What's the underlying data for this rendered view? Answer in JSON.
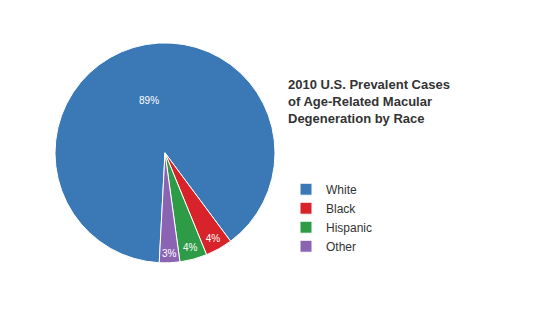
{
  "chart_data": {
    "type": "pie",
    "title": "2010 U.S. Prevalent Cases of Age-Related Macular Degeneration by Race",
    "categories": [
      "White",
      "Black",
      "Hispanic",
      "Other"
    ],
    "values": [
      89,
      4,
      4,
      3
    ],
    "value_labels": [
      "89%",
      "4%",
      "4%",
      "3%"
    ],
    "colors": [
      "#3a79b5",
      "#d8232a",
      "#2e9b47",
      "#8a64b3"
    ],
    "data_labels": true,
    "legend": "right"
  }
}
